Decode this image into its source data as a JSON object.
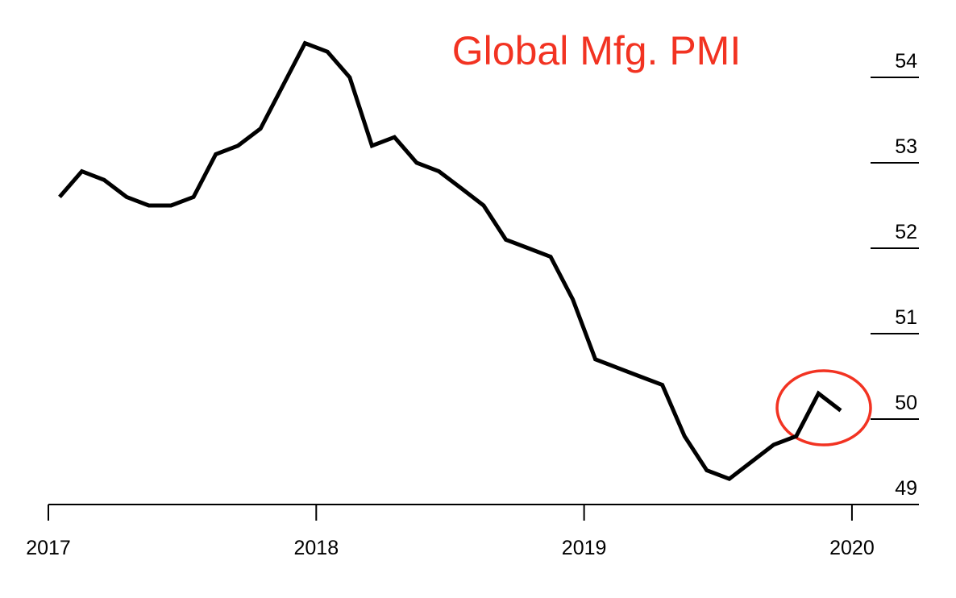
{
  "chart_data": {
    "type": "line",
    "title": "Global Mfg. PMI",
    "x": [
      2017.042,
      2017.125,
      2017.208,
      2017.292,
      2017.375,
      2017.458,
      2017.542,
      2017.625,
      2017.708,
      2017.792,
      2017.875,
      2017.958,
      2018.042,
      2018.125,
      2018.208,
      2018.292,
      2018.375,
      2018.458,
      2018.542,
      2018.625,
      2018.708,
      2018.792,
      2018.875,
      2018.958,
      2019.042,
      2019.125,
      2019.208,
      2019.292,
      2019.375,
      2019.458,
      2019.542,
      2019.625,
      2019.708,
      2019.792,
      2019.875,
      2019.958
    ],
    "values": [
      52.6,
      52.9,
      52.8,
      52.6,
      52.5,
      52.5,
      52.6,
      53.1,
      53.2,
      53.4,
      53.9,
      54.4,
      54.3,
      54.0,
      53.2,
      53.3,
      53.0,
      52.9,
      52.7,
      52.5,
      52.1,
      52.0,
      51.9,
      51.4,
      50.7,
      50.6,
      50.5,
      50.4,
      49.8,
      49.4,
      49.3,
      49.5,
      49.7,
      49.8,
      50.3,
      50.1
    ],
    "color": "#000000",
    "xlim": [
      2017,
      2020.25
    ],
    "xticks": [
      2017,
      2018,
      2019,
      2020
    ],
    "ylim": [
      49,
      54.6
    ],
    "yticks": [
      49,
      50,
      51,
      52,
      53,
      54
    ]
  }
}
